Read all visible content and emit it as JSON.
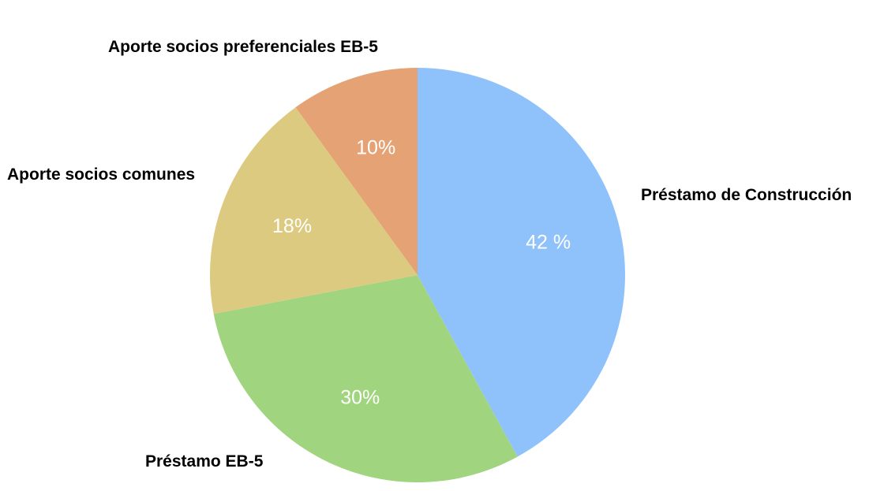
{
  "chart_data": {
    "type": "pie",
    "start_angle_deg": 0,
    "direction": "clockwise",
    "slices": [
      {
        "label": "Préstamo de Construcción",
        "value": 42,
        "pct_text": "42 %",
        "color": "#8fc2fb"
      },
      {
        "label": "Préstamo EB-5",
        "value": 30,
        "pct_text": "30%",
        "color": "#a0d47e"
      },
      {
        "label": "Aporte socios comunes",
        "value": 18,
        "pct_text": "18%",
        "color": "#dcca80"
      },
      {
        "label": "Aporte socios preferenciales EB-5",
        "value": 10,
        "pct_text": "10%",
        "color": "#e5a375"
      }
    ]
  }
}
